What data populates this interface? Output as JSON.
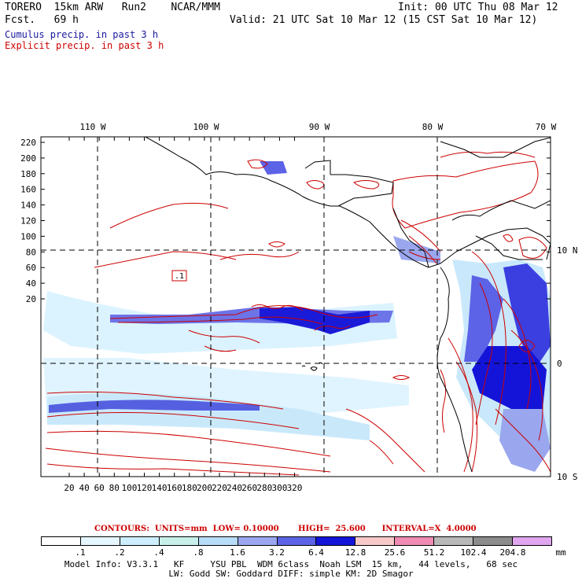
{
  "header": {
    "line1_left": "TORERO  15km ARW   Run2    NCAR/MMM",
    "line1_right": "Init: 00 UTC Thu 08 Mar 12",
    "line2_left": "Fcst.   69 h",
    "line2_right": "Valid: 21 UTC Sat 10 Mar 12 (15 CST Sat 10 Mar 12)"
  },
  "legend": {
    "cumulus": "Cumulus precip. in past 3 h",
    "explicit": "Explicit precip. in past 3 h"
  },
  "map": {
    "lon_labels": [
      "110 W",
      "100 W",
      "90 W",
      "80 W",
      "70 W"
    ],
    "lat_labels": [
      "10 N",
      "0",
      "10 S"
    ],
    "y_ticks": [
      "220",
      "200",
      "180",
      "160",
      "140",
      "120",
      "100",
      "80",
      "60",
      "40",
      "20"
    ],
    "x_ticks": [
      "20",
      "40",
      "60",
      "80",
      "100",
      "120",
      "140",
      "160",
      "180",
      "200",
      "220",
      "240",
      "260",
      "280",
      "300",
      "320"
    ],
    "contour_label": ".1",
    "colors": {
      "explicit": "#cc0000",
      "coast": "#000000",
      "grid": "#000000"
    }
  },
  "colorbar": {
    "title": "CONTOURS:  UNITS=mm  LOW= 0.10000       HIGH=  25.600      INTERVAL=X  4.0000",
    "labels": [
      ".1",
      ".2",
      ".4",
      ".8",
      "1.6",
      "3.2",
      "6.4",
      "12.8",
      "25.6",
      "51.2",
      "102.4",
      "204.8"
    ],
    "units": "mm",
    "colors": [
      "#ffffff",
      "#e6f7ff",
      "#cceeff",
      "#c8f0ea",
      "#b7dcf7",
      "#9aa7ef",
      "#5c63e6",
      "#1414d9",
      "#f7c9c9",
      "#f08cb3",
      "#b8b8b8",
      "#8c8c8c",
      "#e0a6f0"
    ]
  },
  "footer": {
    "line1": "Model Info: V3.3.1   KF     YSU PBL  WDM 6class  Noah LSM  15 km,   44 levels,   68 sec",
    "line2": "LW: Godd SW: Goddard DIFF: simple KM: 2D Smagor"
  }
}
